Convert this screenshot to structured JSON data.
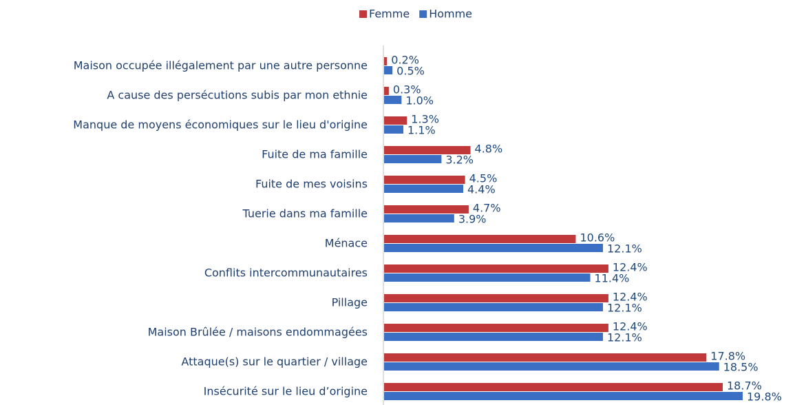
{
  "chart_data": {
    "type": "bar",
    "orientation": "horizontal",
    "categories": [
      "Maison occupée illégalement par une autre personne",
      "A cause des persécutions subis par mon ethnie",
      "Manque de moyens économiques sur le lieu d'origine",
      "Fuite de ma famille",
      "Fuite de mes voisins",
      "Tuerie dans ma famille",
      "Ménace",
      "Conflits intercommunautaires",
      "Pillage",
      "Maison Brûlée / maisons endommagées",
      "Attaque(s) sur le quartier / village",
      "Insécurité sur le lieu d’origine"
    ],
    "series": [
      {
        "name": "Femme",
        "color": "#c0383a",
        "values": [
          0.2,
          0.3,
          1.3,
          4.8,
          4.5,
          4.7,
          10.6,
          12.4,
          12.4,
          12.4,
          17.8,
          18.7
        ],
        "value_labels": [
          "0.2%",
          "0.3%",
          "1.3%",
          "4.8%",
          "4.5%",
          "4.7%",
          "10.6%",
          "12.4%",
          "12.4%",
          "12.4%",
          "17.8%",
          "18.7%"
        ]
      },
      {
        "name": "Homme",
        "color": "#3b6fc4",
        "values": [
          0.5,
          1.0,
          1.1,
          3.2,
          4.4,
          3.9,
          12.1,
          11.4,
          12.1,
          12.1,
          18.5,
          19.8
        ],
        "value_labels": [
          "0.5%",
          "1.0%",
          "1.1%",
          "3.2%",
          "4.4%",
          "3.9%",
          "12.1%",
          "11.4%",
          "12.1%",
          "12.1%",
          "18.5%",
          "19.8%"
        ]
      }
    ],
    "legend": "top"
  }
}
